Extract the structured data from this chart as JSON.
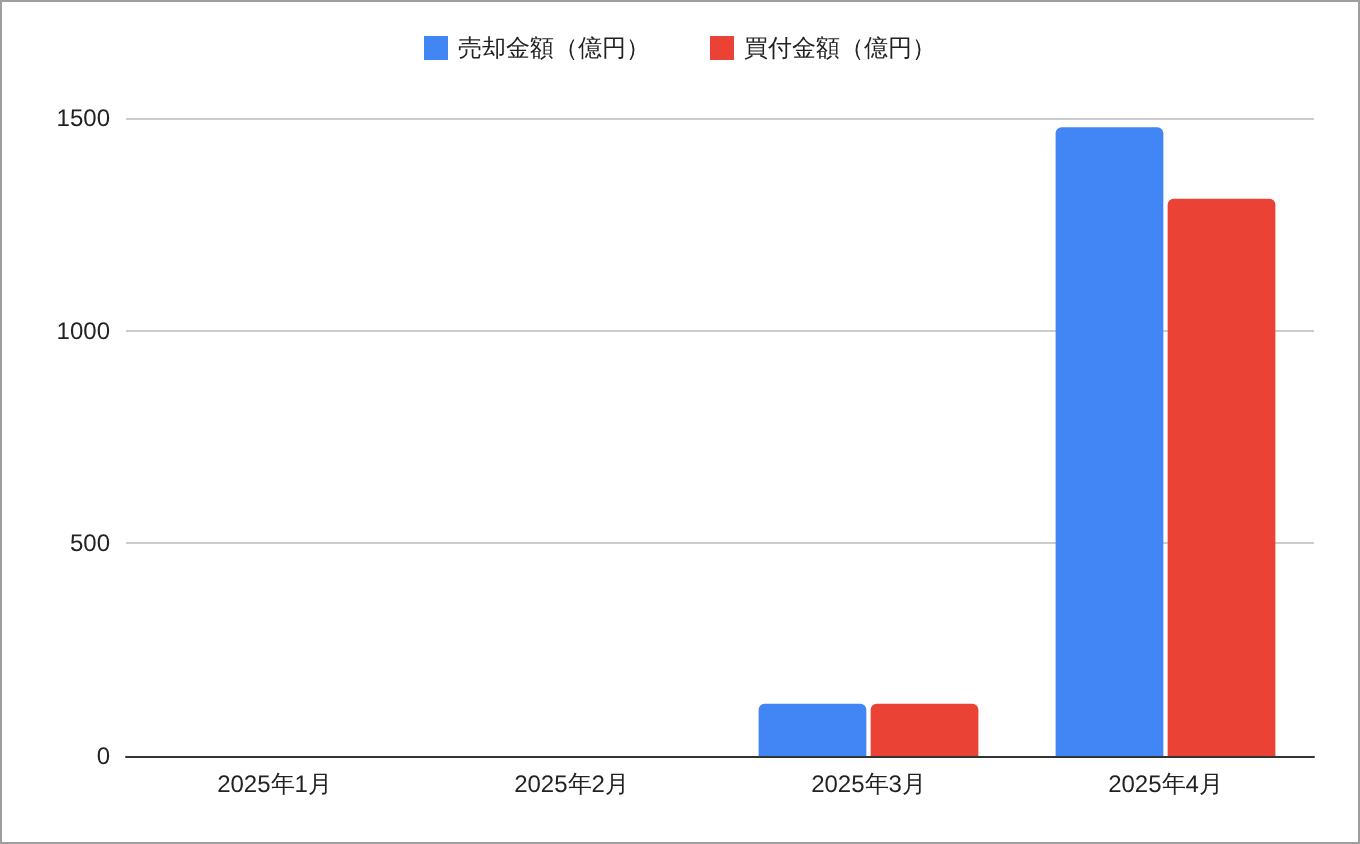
{
  "chart_data": {
    "type": "bar",
    "categories": [
      "2025年1月",
      "2025年2月",
      "2025年3月",
      "2025年4月"
    ],
    "series": [
      {
        "name": "売却金額（億円）",
        "color": "#4285f4",
        "values": [
          null,
          null,
          123,
          1478
        ]
      },
      {
        "name": "買付金額（億円）",
        "color": "#ea4335",
        "values": [
          null,
          null,
          123,
          1310
        ]
      }
    ],
    "ylim": [
      0,
      1500
    ],
    "yticks": [
      0,
      500,
      1000,
      1500
    ],
    "grid": "y",
    "legend": "top"
  }
}
